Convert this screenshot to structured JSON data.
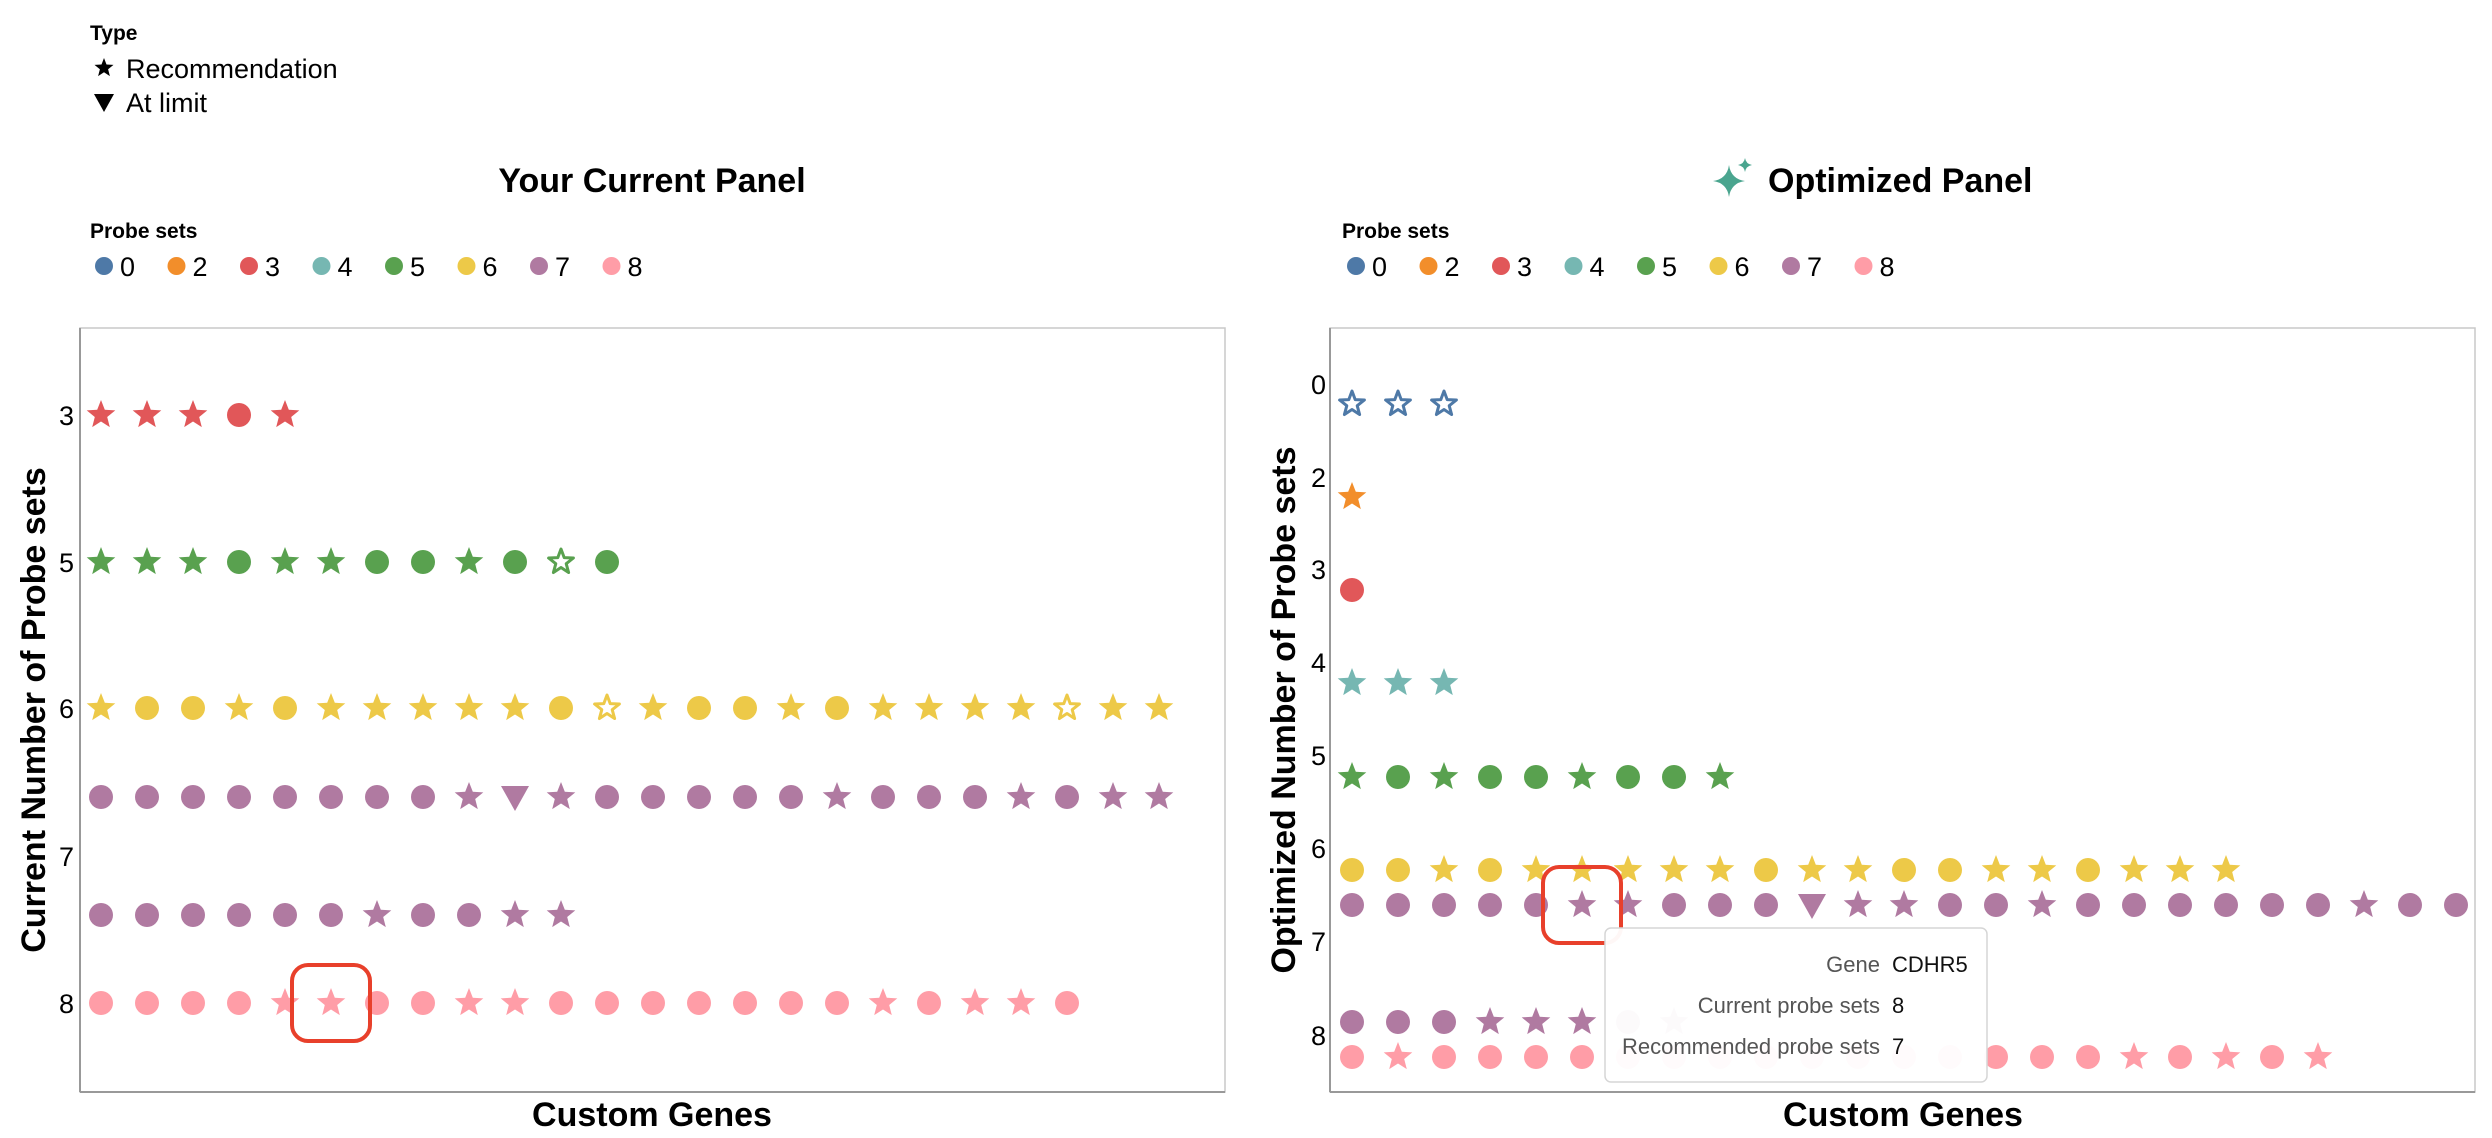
{
  "type_legend": {
    "title": "Type",
    "items": [
      {
        "label": "Recommendation",
        "icon": "star-icon"
      },
      {
        "label": "At limit",
        "icon": "triangle-down-icon"
      }
    ]
  },
  "colors": {
    "0": "#4e79a7",
    "2": "#f28e2b",
    "3": "#e15759",
    "4": "#76b7b2",
    "5": "#59a14f",
    "6": "#edc948",
    "7": "#b07aa1",
    "8": "#ff9da7",
    "highlight": "#e8402b",
    "axis": "#999999"
  },
  "chart_data": [
    {
      "type": "scatter",
      "title": "Your Current Panel",
      "xlabel": "Custom Genes",
      "ylabel": "Current Number of Probe sets",
      "legend_title": "Probe sets",
      "legend": [
        "0",
        "2",
        "3",
        "4",
        "5",
        "6",
        "7",
        "8"
      ],
      "yticks": [
        "3",
        "5",
        "6",
        "7",
        "8"
      ],
      "rows": [
        {
          "cat": "3",
          "series": "3",
          "marks": [
            "star",
            "star",
            "star",
            "circle",
            "star"
          ]
        },
        {
          "cat": "5",
          "series": "5",
          "marks": [
            "star",
            "star",
            "star",
            "circle",
            "star",
            "star",
            "circle",
            "circle",
            "star",
            "circle",
            "star-open",
            "circle"
          ]
        },
        {
          "cat": "6",
          "series": "6",
          "marks": [
            "star",
            "circle",
            "circle",
            "star",
            "circle",
            "star",
            "star",
            "star",
            "star",
            "star",
            "circle",
            "star-open",
            "star",
            "circle",
            "circle",
            "star",
            "circle",
            "star",
            "star",
            "star",
            "star",
            "star-open",
            "star",
            "star"
          ]
        },
        {
          "cat": "7",
          "series": "7",
          "marks": [
            "circle",
            "circle",
            "circle",
            "circle",
            "circle",
            "circle",
            "circle",
            "circle",
            "star",
            "triangle",
            "star",
            "circle",
            "circle",
            "circle",
            "circle",
            "circle",
            "star",
            "circle",
            "circle",
            "circle",
            "star",
            "circle",
            "star",
            "star"
          ]
        },
        {
          "cat": "7",
          "series": "7",
          "marks": [
            "circle",
            "circle",
            "circle",
            "circle",
            "circle",
            "circle",
            "star",
            "circle",
            "circle",
            "star",
            "star"
          ]
        },
        {
          "cat": "8",
          "series": "8",
          "marks": [
            "circle",
            "circle",
            "circle",
            "circle",
            "star",
            "star",
            "circle",
            "circle",
            "star",
            "star",
            "circle",
            "circle",
            "circle",
            "circle",
            "circle",
            "circle",
            "circle",
            "star",
            "circle",
            "star",
            "star",
            "circle"
          ]
        }
      ],
      "highlight": {
        "row": 5,
        "index": 5
      }
    },
    {
      "type": "scatter",
      "title": "Optimized Panel",
      "title_icon": "sparkle-icon",
      "xlabel": "Custom Genes",
      "ylabel": "Optimized Number of Probe sets",
      "legend_title": "Probe sets",
      "legend": [
        "0",
        "2",
        "3",
        "4",
        "5",
        "6",
        "7",
        "8"
      ],
      "yticks": [
        "0",
        "2",
        "3",
        "4",
        "5",
        "6",
        "7",
        "8"
      ],
      "rows": [
        {
          "cat": "0",
          "series": "0",
          "marks": [
            "star-open",
            "star-open",
            "star-open"
          ]
        },
        {
          "cat": "2",
          "series": "2",
          "marks": [
            "star"
          ]
        },
        {
          "cat": "3",
          "series": "3",
          "marks": [
            "circle"
          ]
        },
        {
          "cat": "4",
          "series": "4",
          "marks": [
            "star",
            "star",
            "star"
          ]
        },
        {
          "cat": "5",
          "series": "5",
          "marks": [
            "star",
            "circle",
            "star",
            "circle",
            "circle",
            "star",
            "circle",
            "circle",
            "star"
          ]
        },
        {
          "cat": "6",
          "series": "6",
          "marks": [
            "circle",
            "circle",
            "star",
            "circle",
            "star",
            "star",
            "star",
            "star",
            "star",
            "circle",
            "star",
            "star",
            "circle",
            "circle",
            "star",
            "star",
            "circle",
            "star",
            "star",
            "star"
          ]
        },
        {
          "cat": "7",
          "series": "7",
          "marks": [
            "circle",
            "circle",
            "circle",
            "circle",
            "circle",
            "star",
            "star",
            "circle",
            "circle",
            "circle",
            "triangle",
            "star",
            "star",
            "circle",
            "circle",
            "star",
            "circle",
            "circle",
            "circle",
            "circle",
            "circle",
            "circle",
            "star",
            "circle",
            "circle"
          ]
        },
        {
          "cat": "8",
          "series": "7",
          "marks": [
            "circle",
            "circle",
            "circle",
            "star",
            "star",
            "star",
            "circle",
            "star"
          ]
        },
        {
          "cat": "8",
          "series": "8",
          "marks": [
            "circle",
            "star",
            "circle",
            "circle",
            "circle",
            "circle",
            "circle",
            "circle",
            "circle",
            "circle",
            "circle",
            "circle",
            "circle",
            "circle",
            "circle",
            "circle",
            "circle",
            "star",
            "circle",
            "star",
            "circle",
            "star"
          ]
        }
      ],
      "highlight": {
        "row": 6,
        "index": 5
      },
      "tooltip": {
        "rows": [
          {
            "key": "Gene",
            "value": "CDHR5"
          },
          {
            "key": "Current probe sets",
            "value": "8"
          },
          {
            "key": "Recommended probe sets",
            "value": "7"
          }
        ]
      }
    }
  ]
}
